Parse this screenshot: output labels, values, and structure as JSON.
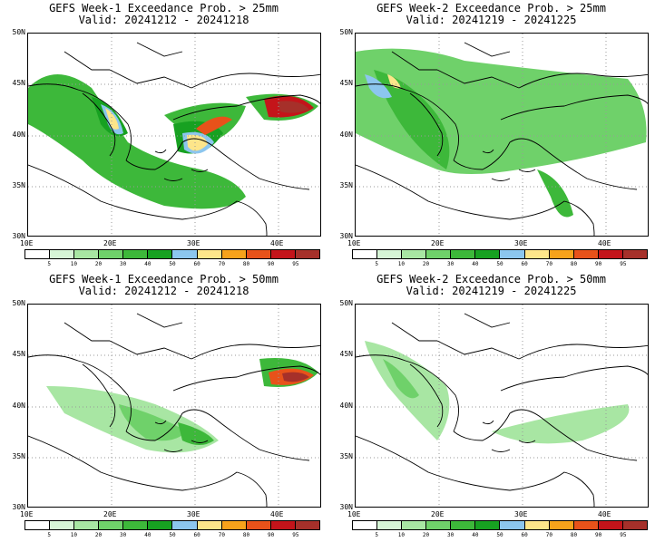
{
  "panels": [
    {
      "title": "GEFS Week-1 Exceedance Prob. > 25mm",
      "valid": "Valid: 20241212 - 20241218"
    },
    {
      "title": "GEFS Week-2 Exceedance Prob. > 25mm",
      "valid": "Valid: 20241219 - 20241225"
    },
    {
      "title": "GEFS Week-1 Exceedance Prob. > 50mm",
      "valid": "Valid: 20241212 - 20241218"
    },
    {
      "title": "GEFS Week-2 Exceedance Prob. > 50mm",
      "valid": "Valid: 20241219 - 20241225"
    }
  ],
  "lat_labels": [
    "50N",
    "45N",
    "40N",
    "35N",
    "30N"
  ],
  "lon_labels": [
    "10E",
    "20E",
    "30E",
    "40E"
  ],
  "colorbar": {
    "labels": [
      "5",
      "10",
      "20",
      "30",
      "40",
      "50",
      "60",
      "70",
      "80",
      "90",
      "95"
    ],
    "colors": [
      "#ffffff",
      "#d6f5d6",
      "#a8e6a3",
      "#6fd16a",
      "#3db83a",
      "#17a121",
      "#8cc6ee",
      "#fde58a",
      "#f7a21b",
      "#e8521a",
      "#c4141a",
      "#a6302a"
    ]
  }
}
